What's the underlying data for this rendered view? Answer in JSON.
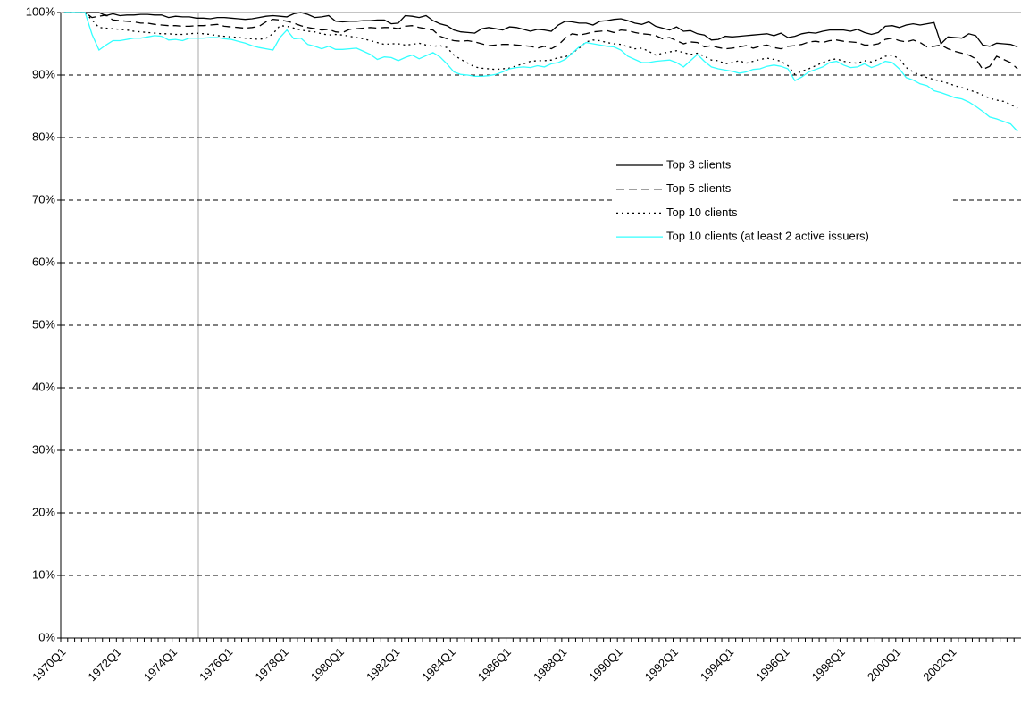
{
  "chart_data": {
    "type": "line",
    "categories": [
      "1970Q1",
      null,
      null,
      null,
      null,
      null,
      null,
      null,
      "1972Q1",
      null,
      null,
      null,
      null,
      null,
      null,
      null,
      "1974Q1",
      null,
      null,
      null,
      null,
      null,
      null,
      null,
      "1976Q1",
      null,
      null,
      null,
      null,
      null,
      null,
      null,
      "1978Q1",
      null,
      null,
      null,
      null,
      null,
      null,
      null,
      "1980Q1",
      null,
      null,
      null,
      null,
      null,
      null,
      null,
      "1982Q1",
      null,
      null,
      null,
      null,
      null,
      null,
      null,
      "1984Q1",
      null,
      null,
      null,
      null,
      null,
      null,
      null,
      "1986Q1",
      null,
      null,
      null,
      null,
      null,
      null,
      null,
      "1988Q1",
      null,
      null,
      null,
      null,
      null,
      null,
      null,
      "1990Q1",
      null,
      null,
      null,
      null,
      null,
      null,
      null,
      "1992Q1",
      null,
      null,
      null,
      null,
      null,
      null,
      null,
      "1994Q1",
      null,
      null,
      null,
      null,
      null,
      null,
      null,
      "1996Q1",
      null,
      null,
      null,
      null,
      null,
      null,
      null,
      "1998Q1",
      null,
      null,
      null,
      null,
      null,
      null,
      null,
      "2000Q1",
      null,
      null,
      null,
      null,
      null,
      null,
      null,
      "2002Q1",
      null,
      null,
      null,
      null,
      null,
      null,
      null,
      null,
      null
    ],
    "series": [
      {
        "name": "Top 3 clients",
        "color": "#000000",
        "dash": "solid",
        "values": [
          100,
          100,
          100,
          100,
          100,
          100,
          99.5,
          99.8,
          99.5,
          99.6,
          99.6,
          99.7,
          99.7,
          99.6,
          99.6,
          99.2,
          99.4,
          99.3,
          99.3,
          99.1,
          99.1,
          99.0,
          99.2,
          99.2,
          99.1,
          99.0,
          98.9,
          99.0,
          99.2,
          99.4,
          99.5,
          99.4,
          99.3,
          99.8,
          100,
          99.7,
          99.2,
          99.3,
          99.5,
          98.6,
          98.5,
          98.6,
          98.6,
          98.7,
          98.7,
          98.8,
          98.8,
          98.2,
          98.3,
          99.5,
          99.4,
          99.2,
          99.5,
          98.7,
          98.2,
          97.9,
          97.2,
          96.9,
          96.8,
          96.7,
          97.4,
          97.6,
          97.4,
          97.2,
          97.7,
          97.6,
          97.3,
          97.0,
          97.3,
          97.2,
          97.0,
          98.0,
          98.6,
          98.5,
          98.3,
          98.3,
          98.0,
          98.6,
          98.7,
          98.9,
          99.0,
          98.7,
          98.3,
          98.1,
          98.5,
          97.8,
          97.5,
          97.2,
          97.7,
          97.0,
          97.1,
          96.6,
          96.4,
          95.6,
          95.7,
          96.2,
          96.1,
          96.2,
          96.3,
          96.4,
          96.5,
          96.6,
          96.3,
          96.7,
          96.0,
          96.2,
          96.6,
          96.8,
          96.7,
          97.0,
          97.2,
          97.2,
          97.2,
          97.0,
          97.3,
          96.8,
          96.5,
          96.8,
          97.8,
          97.9,
          97.6,
          98.0,
          98.2,
          98.0,
          98.2,
          98.4,
          95.0,
          96.1,
          96.0,
          95.9,
          96.6,
          96.3,
          94.8,
          94.6,
          95.1,
          95.0,
          94.9,
          94.5
        ]
      },
      {
        "name": "Top 5 clients",
        "color": "#000000",
        "dash": "dashed",
        "values": [
          100,
          100,
          100,
          100,
          99.2,
          99.4,
          99.6,
          98.8,
          98.7,
          98.6,
          98.5,
          98.3,
          98.3,
          98.1,
          98.0,
          97.9,
          97.9,
          97.8,
          97.8,
          97.9,
          97.9,
          98.0,
          98.1,
          97.8,
          97.7,
          97.6,
          97.5,
          97.6,
          97.8,
          98.5,
          98.9,
          98.8,
          98.6,
          98.3,
          97.9,
          97.6,
          97.4,
          97.2,
          97.3,
          96.9,
          96.8,
          97.3,
          97.4,
          97.5,
          97.6,
          97.5,
          97.6,
          97.6,
          97.4,
          97.8,
          97.9,
          97.6,
          97.4,
          97.2,
          96.2,
          95.8,
          95.5,
          95.4,
          95.5,
          95.3,
          95.0,
          94.7,
          94.8,
          94.9,
          94.9,
          94.8,
          94.7,
          94.6,
          94.3,
          94.6,
          94.2,
          94.8,
          95.9,
          96.6,
          96.4,
          96.6,
          96.9,
          97.0,
          97.1,
          96.8,
          97.2,
          97.1,
          96.8,
          96.6,
          96.5,
          96.3,
          95.8,
          96.0,
          95.5,
          95.0,
          95.3,
          95.2,
          94.5,
          94.7,
          94.4,
          94.2,
          94.3,
          94.5,
          94.7,
          94.3,
          94.6,
          94.8,
          94.4,
          94.2,
          94.6,
          94.7,
          94.9,
          95.3,
          95.4,
          95.2,
          95.5,
          95.6,
          95.4,
          95.3,
          95.2,
          94.8,
          94.8,
          95.0,
          95.7,
          95.9,
          95.5,
          95.3,
          95.6,
          95.2,
          94.5,
          94.6,
          94.8,
          94.2,
          93.8,
          93.5,
          93.2,
          92.6,
          90.9,
          91.4,
          93.0,
          92.5,
          92.0,
          91.0
        ]
      },
      {
        "name": "Top 10 clients",
        "color": "#000000",
        "dash": "dotted",
        "values": [
          100,
          100,
          100,
          100,
          98.8,
          97.6,
          97.5,
          97.4,
          97.3,
          97.2,
          97.0,
          96.9,
          96.8,
          96.7,
          96.6,
          96.6,
          96.5,
          96.5,
          96.6,
          96.7,
          96.6,
          96.5,
          96.3,
          96.2,
          96.1,
          96.0,
          95.9,
          95.8,
          95.7,
          95.9,
          96.6,
          97.9,
          97.8,
          97.5,
          97.2,
          97.0,
          96.9,
          96.6,
          96.4,
          96.5,
          96.4,
          96.2,
          96.0,
          95.8,
          95.5,
          95.2,
          94.9,
          95.0,
          95.0,
          94.8,
          94.9,
          95.1,
          94.8,
          94.6,
          94.7,
          94.4,
          93.2,
          92.5,
          91.9,
          91.3,
          91.1,
          91.0,
          90.9,
          91.0,
          91.1,
          91.5,
          91.8,
          92.2,
          92.3,
          92.3,
          92.4,
          92.8,
          92.9,
          93.5,
          94.3,
          95.3,
          95.6,
          95.5,
          95.2,
          95.0,
          94.9,
          94.5,
          94.2,
          94.3,
          93.8,
          93.2,
          93.5,
          93.7,
          93.9,
          93.6,
          93.3,
          93.5,
          93.0,
          92.4,
          92.3,
          91.8,
          92.0,
          92.3,
          91.9,
          92.2,
          92.5,
          92.7,
          92.5,
          92.2,
          91.5,
          90.1,
          90.6,
          91.0,
          91.5,
          92.0,
          92.4,
          92.6,
          92.2,
          92.0,
          91.9,
          92.3,
          92.1,
          92.5,
          93.0,
          93.2,
          92.6,
          91.2,
          90.5,
          90.0,
          89.6,
          89.3,
          89.0,
          88.7,
          88.3,
          88.0,
          87.6,
          87.3,
          86.8,
          86.3,
          86.0,
          85.8,
          85.3,
          84.7
        ]
      },
      {
        "name": "Top 10 clients (at least 2 active issuers)",
        "color": "#33ffff",
        "dash": "solid",
        "values": [
          100,
          100,
          100,
          100,
          96.5,
          94.0,
          94.8,
          95.5,
          95.5,
          95.7,
          95.9,
          95.9,
          96.1,
          96.3,
          96.2,
          95.6,
          95.7,
          95.5,
          95.9,
          95.9,
          95.9,
          96.0,
          96.0,
          95.8,
          95.7,
          95.4,
          95.1,
          94.7,
          94.4,
          94.2,
          94.0,
          96.0,
          97.2,
          95.8,
          95.9,
          94.9,
          94.6,
          94.2,
          94.6,
          94.1,
          94.1,
          94.2,
          94.3,
          93.8,
          93.3,
          92.5,
          92.9,
          92.8,
          92.3,
          92.8,
          93.2,
          92.6,
          93.1,
          93.6,
          92.9,
          91.8,
          90.5,
          90.1,
          90.0,
          89.8,
          89.8,
          89.9,
          90.1,
          90.5,
          91.0,
          91.2,
          91.3,
          91.2,
          91.5,
          91.3,
          91.8,
          92.0,
          92.5,
          93.5,
          94.5,
          95.2,
          95.0,
          94.8,
          94.6,
          94.5,
          94.0,
          93.0,
          92.5,
          92.0,
          92.0,
          92.2,
          92.3,
          92.4,
          92.0,
          91.3,
          92.3,
          93.3,
          92.2,
          91.3,
          91.0,
          90.8,
          90.6,
          90.3,
          90.5,
          90.9,
          91.0,
          91.4,
          91.6,
          91.4,
          91.0,
          89.1,
          89.7,
          90.5,
          90.9,
          91.3,
          92.0,
          92.2,
          91.6,
          91.2,
          91.3,
          91.8,
          91.2,
          91.6,
          92.2,
          92.0,
          91.0,
          89.6,
          89.2,
          88.6,
          88.3,
          87.5,
          87.2,
          86.8,
          86.4,
          86.2,
          85.7,
          85.0,
          84.2,
          83.3,
          83.0,
          82.6,
          82.2,
          81.0
        ]
      }
    ],
    "ylim": [
      0,
      100
    ],
    "yticks": [
      {
        "value": 0,
        "label": "0%"
      },
      {
        "value": 10,
        "label": "10%"
      },
      {
        "value": 20,
        "label": "20%"
      },
      {
        "value": 30,
        "label": "30%"
      },
      {
        "value": 40,
        "label": "40%"
      },
      {
        "value": 50,
        "label": "50%"
      },
      {
        "value": 60,
        "label": "60%"
      },
      {
        "value": 70,
        "label": "70%"
      },
      {
        "value": 80,
        "label": "80%"
      },
      {
        "value": 90,
        "label": "90%"
      },
      {
        "value": 100,
        "label": "100%"
      }
    ],
    "grid": true
  }
}
